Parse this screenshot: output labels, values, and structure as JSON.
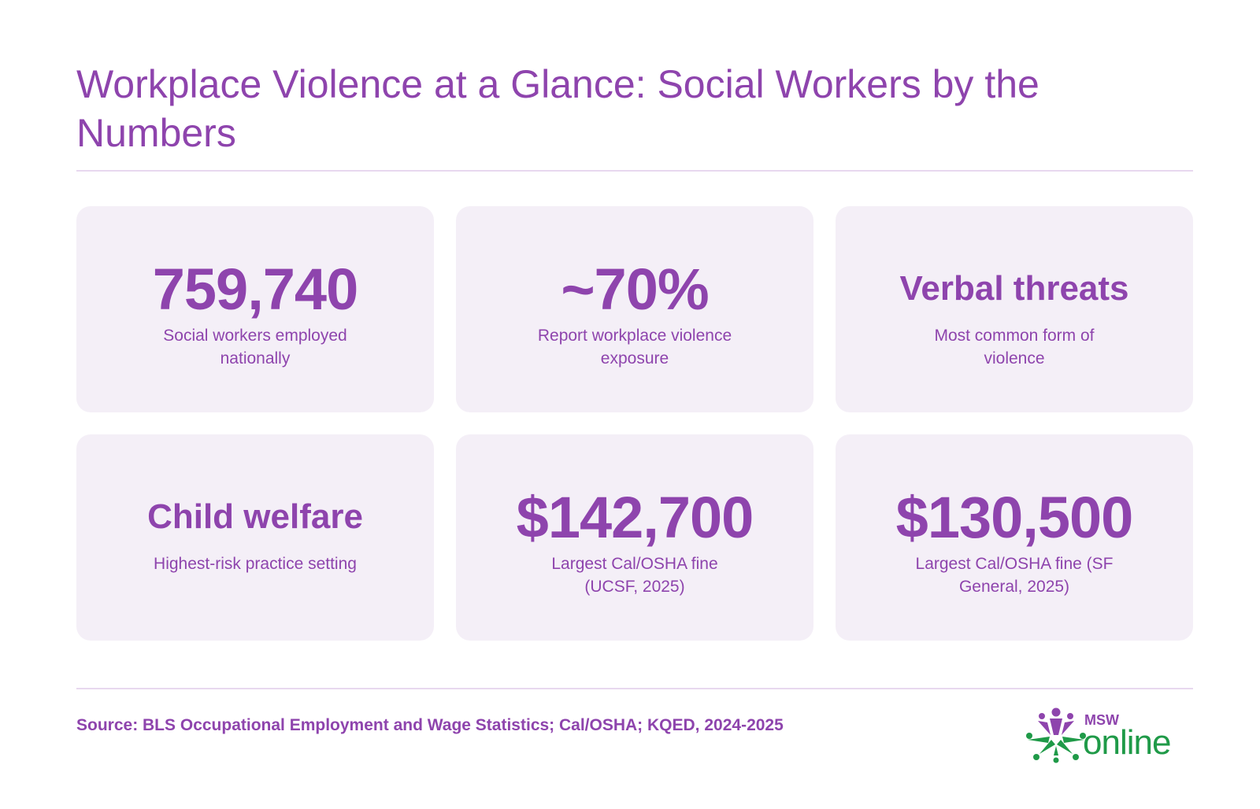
{
  "title": "Workplace Violence at a Glance: Social Workers by the Numbers",
  "stats": [
    {
      "value": "759,740",
      "label": "Social workers employed nationally"
    },
    {
      "value": "~70%",
      "label": "Report workplace violence exposure"
    },
    {
      "value": "Verbal threats",
      "label": "Most common form of violence"
    },
    {
      "value": "Child welfare",
      "label": "Highest-risk practice setting"
    },
    {
      "value": "$142,700",
      "label": "Largest Cal/OSHA fine (UCSF, 2025)"
    },
    {
      "value": "$130,500",
      "label": "Largest Cal/OSHA fine (SF General, 2025)"
    }
  ],
  "source": "Source: BLS Occupational Employment and Wage Statistics; Cal/OSHA; KQED, 2024-2025",
  "logo": {
    "top_text": "MSW",
    "main_text": "online",
    "colors": {
      "purple": "#8e44ad",
      "green": "#1f9a48"
    }
  },
  "colors": {
    "accent": "#8e44ad",
    "card_background": "#f4eff7",
    "divider": "#e8d8ef"
  }
}
